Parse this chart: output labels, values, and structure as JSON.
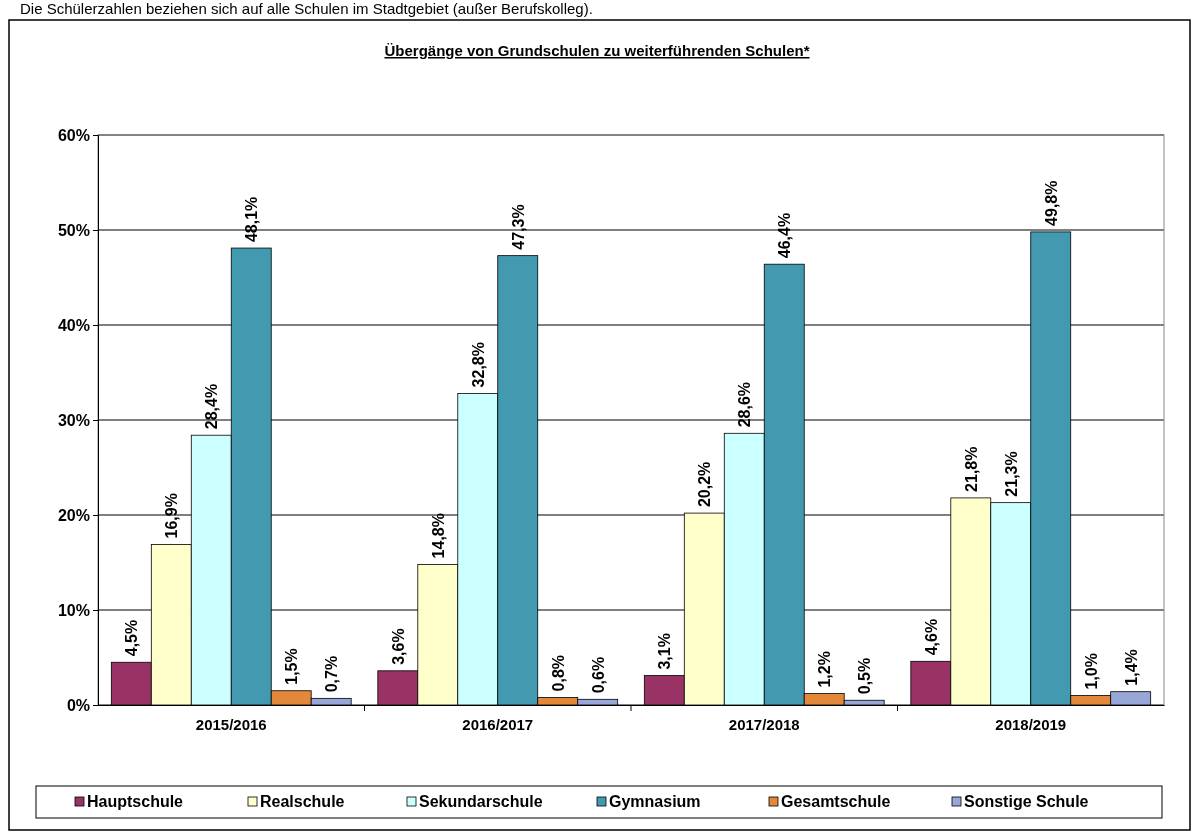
{
  "chart_data": {
    "type": "bar",
    "title": "Übergänge von Grundschulen zu weiterführenden Schulen*",
    "annotations": [
      "Die Schülerzahlen beziehen sich auf alle Schulen im Stadtgebiet (außer Berufskolleg)."
    ],
    "categories": [
      "2015/2016",
      "2016/2017",
      "2017/2018",
      "2018/2019"
    ],
    "series": [
      {
        "name": "Hauptschule",
        "color": "#993366",
        "values": [
          4.5,
          3.6,
          3.1,
          4.6
        ],
        "value_labels": [
          "4,5%",
          "3,6%",
          "3,1%",
          "4,6%"
        ]
      },
      {
        "name": "Realschule",
        "color": "#ffffcc",
        "values": [
          16.9,
          14.8,
          20.2,
          21.8
        ],
        "value_labels": [
          "16,9%",
          "14,8%",
          "20,2%",
          "21,8%"
        ]
      },
      {
        "name": "Sekundarschule",
        "color": "#ccffff",
        "values": [
          28.4,
          32.8,
          28.6,
          21.3
        ],
        "value_labels": [
          "28,4%",
          "32,8%",
          "28,6%",
          "21,3%"
        ]
      },
      {
        "name": "Gymnasium",
        "color": "#4299b0",
        "values": [
          48.1,
          47.3,
          46.4,
          49.8
        ],
        "value_labels": [
          "48,1%",
          "47,3%",
          "46,4%",
          "49,8%"
        ]
      },
      {
        "name": "Gesamtschule",
        "color": "#e3873a",
        "values": [
          1.5,
          0.8,
          1.2,
          1.0
        ],
        "value_labels": [
          "1,5%",
          "0,8%",
          "1,2%",
          "1,0%"
        ]
      },
      {
        "name": "Sonstige Schule",
        "color": "#99a6d8",
        "values": [
          0.7,
          0.6,
          0.5,
          1.4
        ],
        "value_labels": [
          "0,7%",
          "0,6%",
          "0,5%",
          "1,4%"
        ]
      }
    ],
    "ylim": [
      0,
      60
    ],
    "yticks": [
      {
        "value": 0,
        "label": "0%"
      },
      {
        "value": 10,
        "label": "10%"
      },
      {
        "value": 20,
        "label": "20%"
      },
      {
        "value": 30,
        "label": "30%"
      },
      {
        "value": 40,
        "label": "40%"
      },
      {
        "value": 50,
        "label": "50%"
      },
      {
        "value": 60,
        "label": "60%"
      }
    ],
    "grid": "y",
    "legend": "bottom"
  }
}
